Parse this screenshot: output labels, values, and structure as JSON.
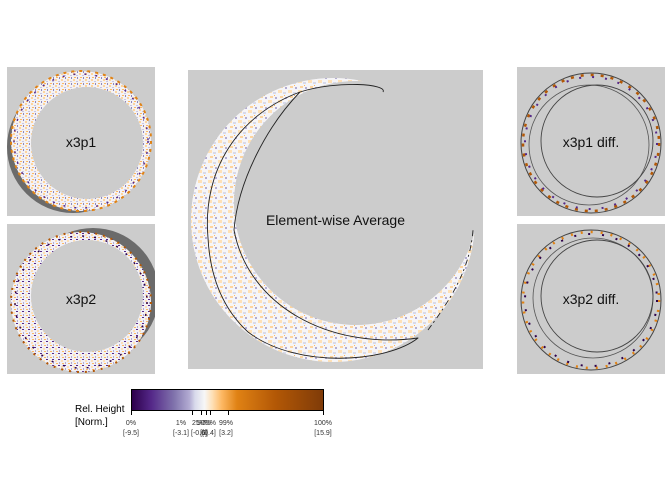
{
  "panels": {
    "x3p1": {
      "label": "x3p1"
    },
    "x3p2": {
      "label": "x3p2"
    },
    "average": {
      "label": "Element-wise Average"
    },
    "x3p1_diff": {
      "label": "x3p1 diff."
    },
    "x3p2_diff": {
      "label": "x3p2 diff."
    }
  },
  "legend": {
    "title_line1": "Rel. Height",
    "title_line2": "[Norm.]",
    "ticks": [
      {
        "pct": "0%",
        "value": "[-9.5]"
      },
      {
        "pct": "1%",
        "value": "[-3.1]"
      },
      {
        "pct": "25%",
        "value": "[-0.6]"
      },
      {
        "pct": "50%",
        "value": "[0]"
      },
      {
        "pct": "75%",
        "value": "[0.4]"
      },
      {
        "pct": "99%",
        "value": "[3.2]"
      },
      {
        "pct": "100%",
        "value": "[15.9]"
      }
    ]
  },
  "colors": {
    "panel_background": "#cccccc",
    "shadow": "#6b6b6b",
    "ring_white": "#f7f7f7",
    "low": "#2d004b",
    "high": "#7f3b08",
    "outline": "#222222"
  }
}
